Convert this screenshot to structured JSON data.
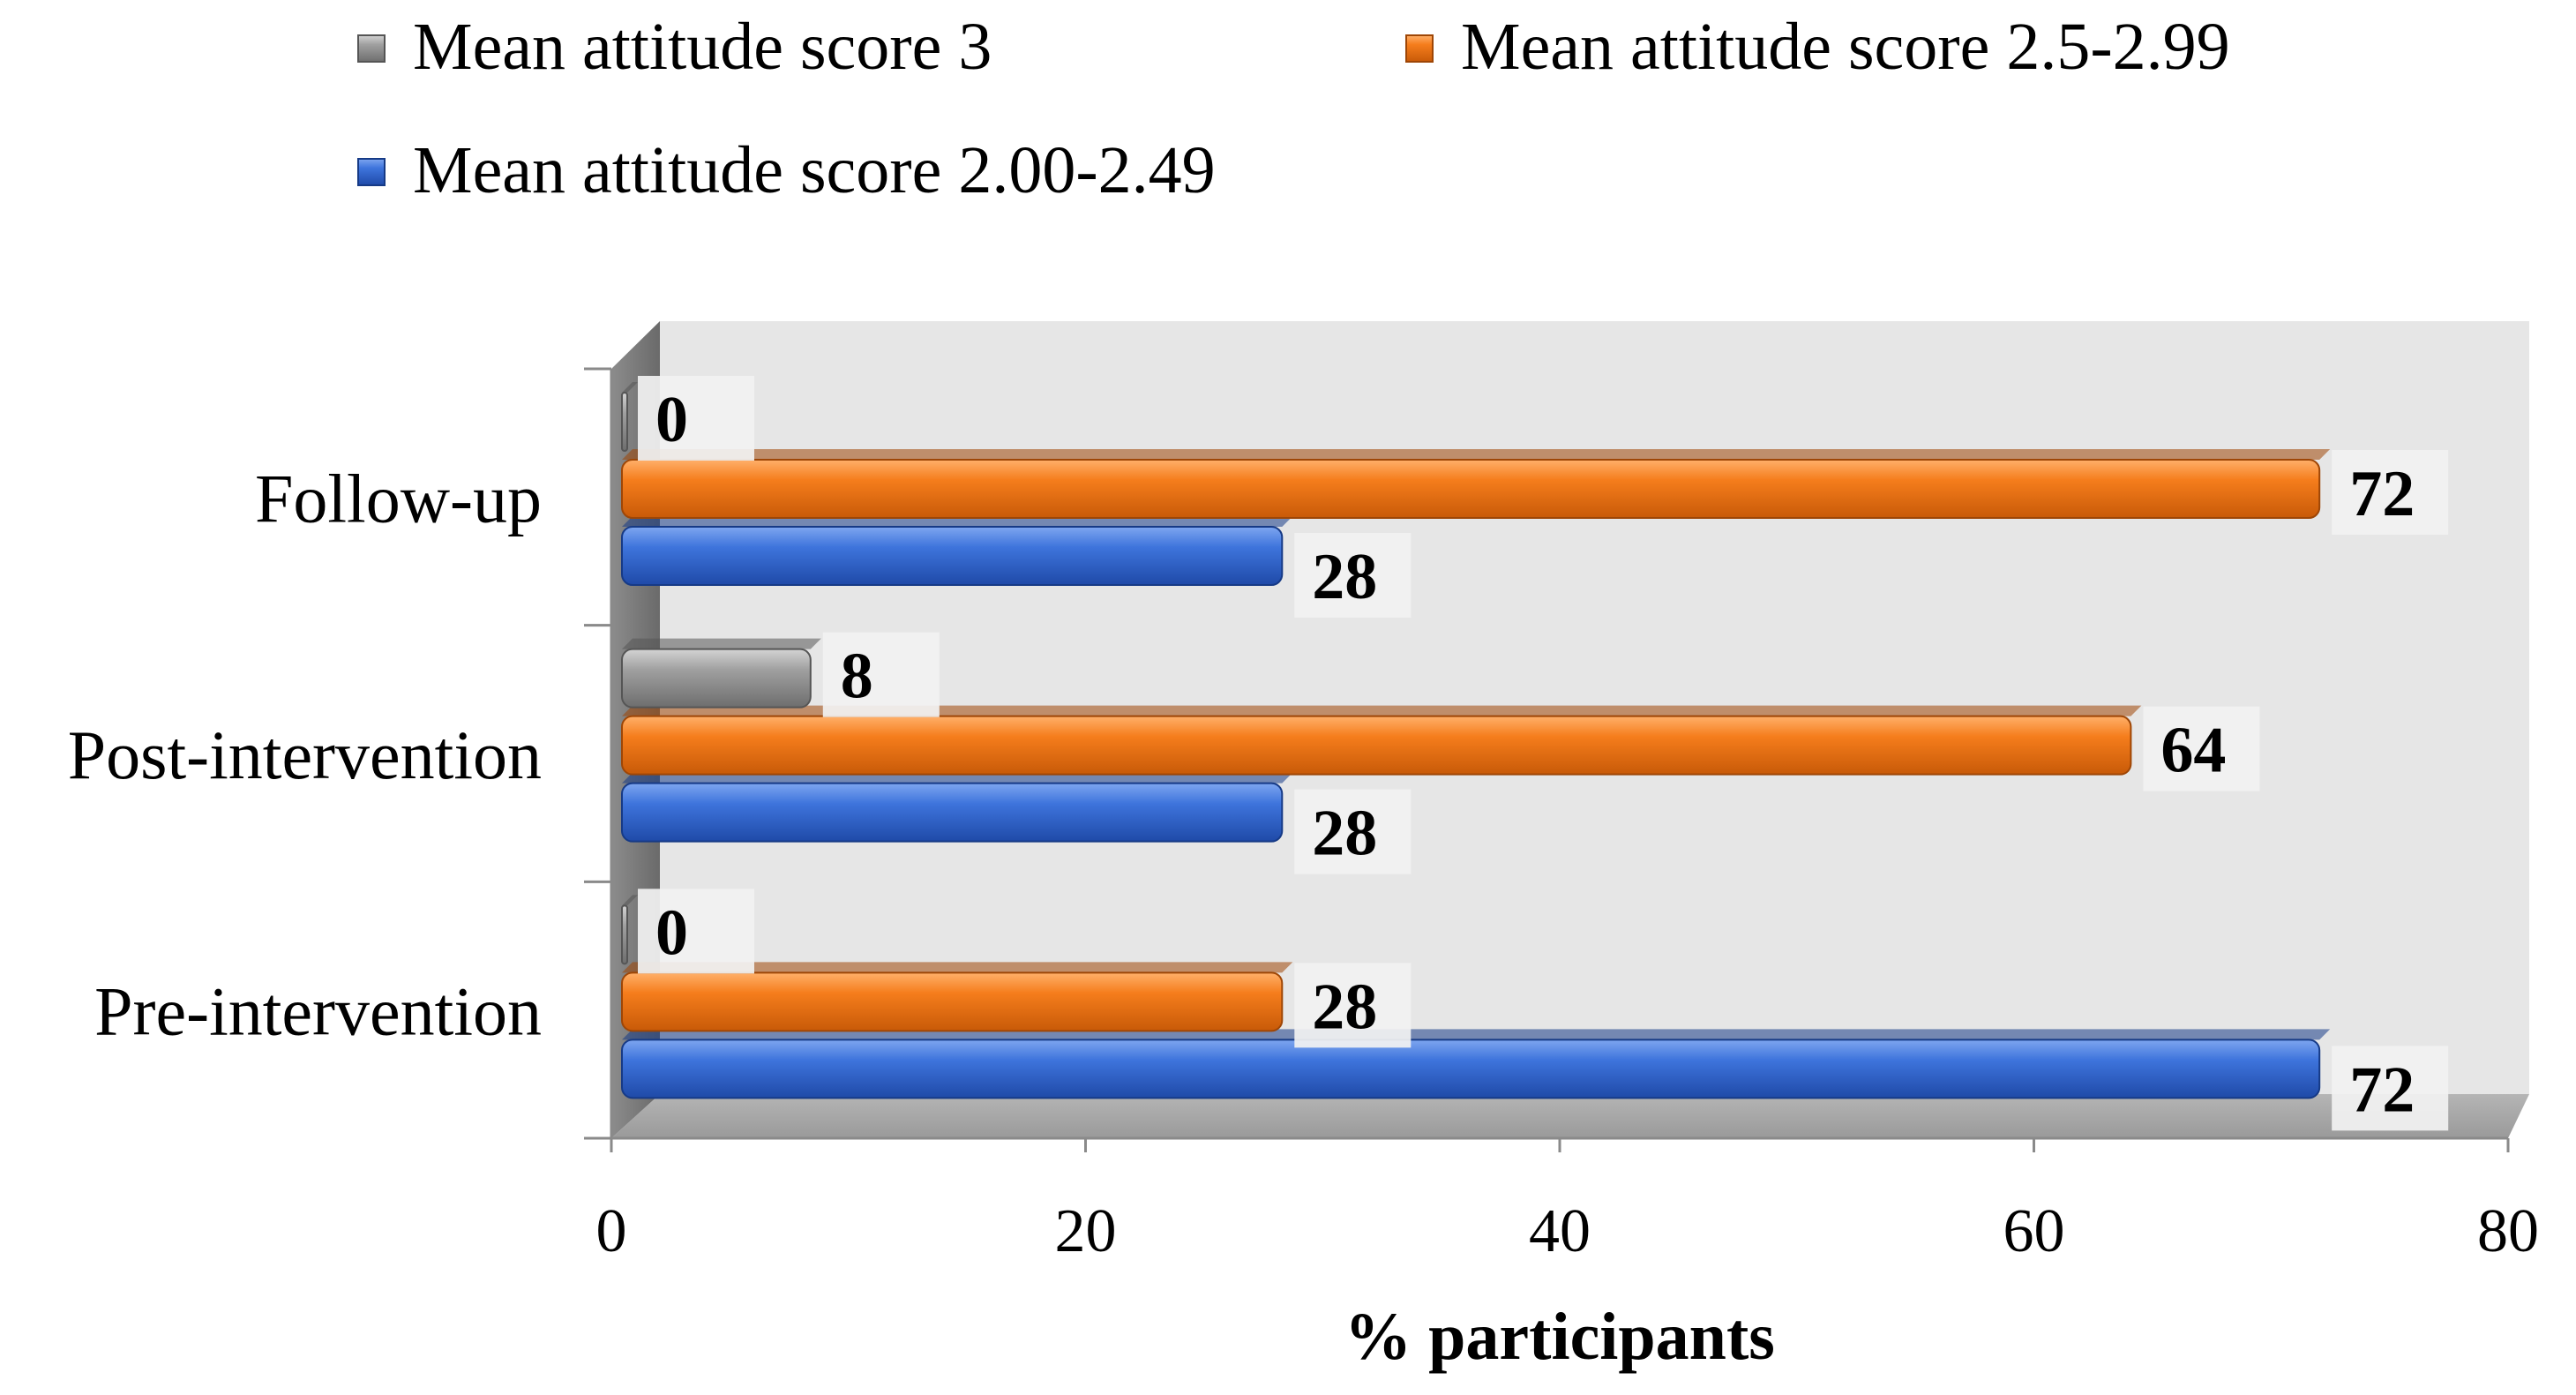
{
  "chart_data": {
    "type": "bar",
    "orientation": "horizontal",
    "three_d": true,
    "categories": [
      "Pre-intervention",
      "Post-intervention",
      "Follow-up"
    ],
    "series": [
      {
        "name": "Mean attitude score 2.00-2.49",
        "values": [
          72,
          28,
          28
        ],
        "color": "#3a6fd8"
      },
      {
        "name": "Mean attitude score 2.5-2.99",
        "values": [
          28,
          64,
          72
        ],
        "color": "#f07a1a"
      },
      {
        "name": "Mean attitude score 3",
        "values": [
          0,
          8,
          0
        ],
        "color": "#9a9a9a"
      }
    ],
    "legend_order": [
      2,
      1,
      0
    ],
    "xlabel": "% participants",
    "ylabel": "",
    "xlim": [
      0,
      80
    ],
    "xticks": [
      "0",
      "20",
      "40",
      "60",
      "80"
    ],
    "grid": false,
    "legend_position": "top",
    "data_labels": true
  }
}
